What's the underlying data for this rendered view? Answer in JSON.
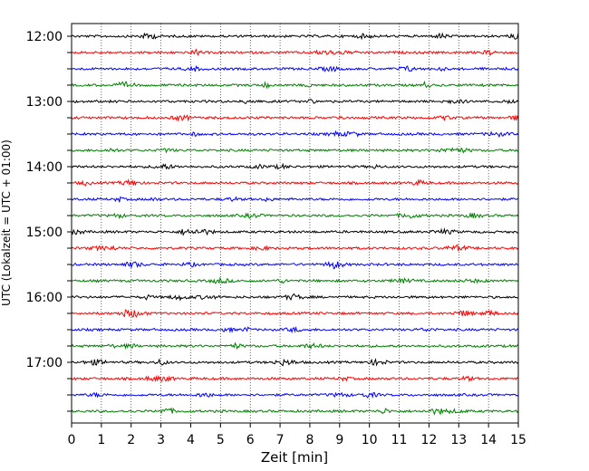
{
  "chart_data": {
    "type": "line",
    "title": "",
    "xlabel": "Zeit  [min]",
    "ylabel": "UTC (Lokalzeit = UTC + 01:00)",
    "xlim": [
      0,
      15
    ],
    "x_ticks": [
      "0",
      "1",
      "2",
      "3",
      "4",
      "5",
      "6",
      "7",
      "8",
      "9",
      "10",
      "11",
      "12",
      "13",
      "14",
      "15"
    ],
    "y_tick_labels": [
      "12:00",
      "13:00",
      "14:00",
      "15:00",
      "16:00",
      "17:00"
    ],
    "traces_start": "12:00",
    "trace_interval_min": 15,
    "trace_count": 24,
    "trace_colors": [
      "#000000",
      "#ff0000",
      "#0000ff",
      "#008000"
    ],
    "grid": "vertical dotted lines at each minute",
    "legend": "none"
  }
}
